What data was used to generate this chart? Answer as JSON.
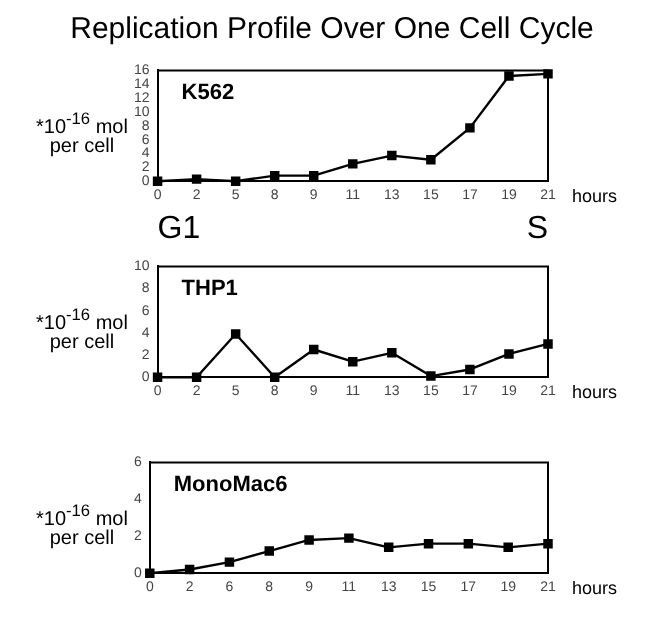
{
  "chart_data": [
    {
      "type": "line",
      "title": "Replication Profile Over One Cell Cycle",
      "xlabel": "hours",
      "ylabel": "*10$^{-16}$ mol per cell",
      "categories": [
        "0",
        "2",
        "5",
        "8",
        "9",
        "11",
        "13",
        "15",
        "17",
        "19",
        "21"
      ],
      "series": [
        {
          "color": "#000000",
          "values": [
            0,
            0.3,
            0,
            0.8,
            0.8,
            2.5,
            3.7,
            3.1,
            7.7,
            15.2,
            15.5
          ]
        }
      ],
      "ylim": [
        0,
        16
      ],
      "yticks": [
        0,
        2,
        4,
        6,
        8,
        10,
        12,
        14,
        16
      ],
      "grid": false,
      "legend": false,
      "marker": "square",
      "line_style": "solid",
      "annotations": [
        "K562",
        "G1",
        "S"
      ]
    },
    {
      "type": "line",
      "xlabel": "hours",
      "ylabel": "*10$^{-16}$ mol per cell",
      "categories": [
        "0",
        "2",
        "5",
        "8",
        "9",
        "11",
        "13",
        "15",
        "17",
        "19",
        "21"
      ],
      "series": [
        {
          "color": "#000000",
          "values": [
            0,
            0,
            3.9,
            0,
            2.5,
            1.4,
            2.2,
            0.1,
            0.7,
            2.1,
            3.0
          ]
        }
      ],
      "ylim": [
        0,
        10
      ],
      "yticks": [
        0,
        2,
        4,
        6,
        8,
        10
      ],
      "grid": false,
      "legend": false,
      "marker": "square",
      "line_style": "solid",
      "annotations": [
        "THP1"
      ]
    },
    {
      "type": "line",
      "xlabel": "hours",
      "ylabel": "*10$^{-16}$ mol per cell",
      "categories": [
        "0",
        "2",
        "6",
        "8",
        "9",
        "11",
        "13",
        "15",
        "17",
        "19",
        "21"
      ],
      "series": [
        {
          "color": "#000000",
          "values": [
            0,
            0.2,
            0.6,
            1.2,
            1.8,
            1.9,
            1.4,
            1.6,
            1.6,
            1.4,
            1.6
          ]
        }
      ],
      "ylim": [
        0,
        6
      ],
      "yticks": [
        0,
        2,
        4,
        6
      ],
      "grid": false,
      "legend": false,
      "marker": "square",
      "line_style": "solid",
      "annotations": [
        "MonoMac6"
      ]
    }
  ]
}
